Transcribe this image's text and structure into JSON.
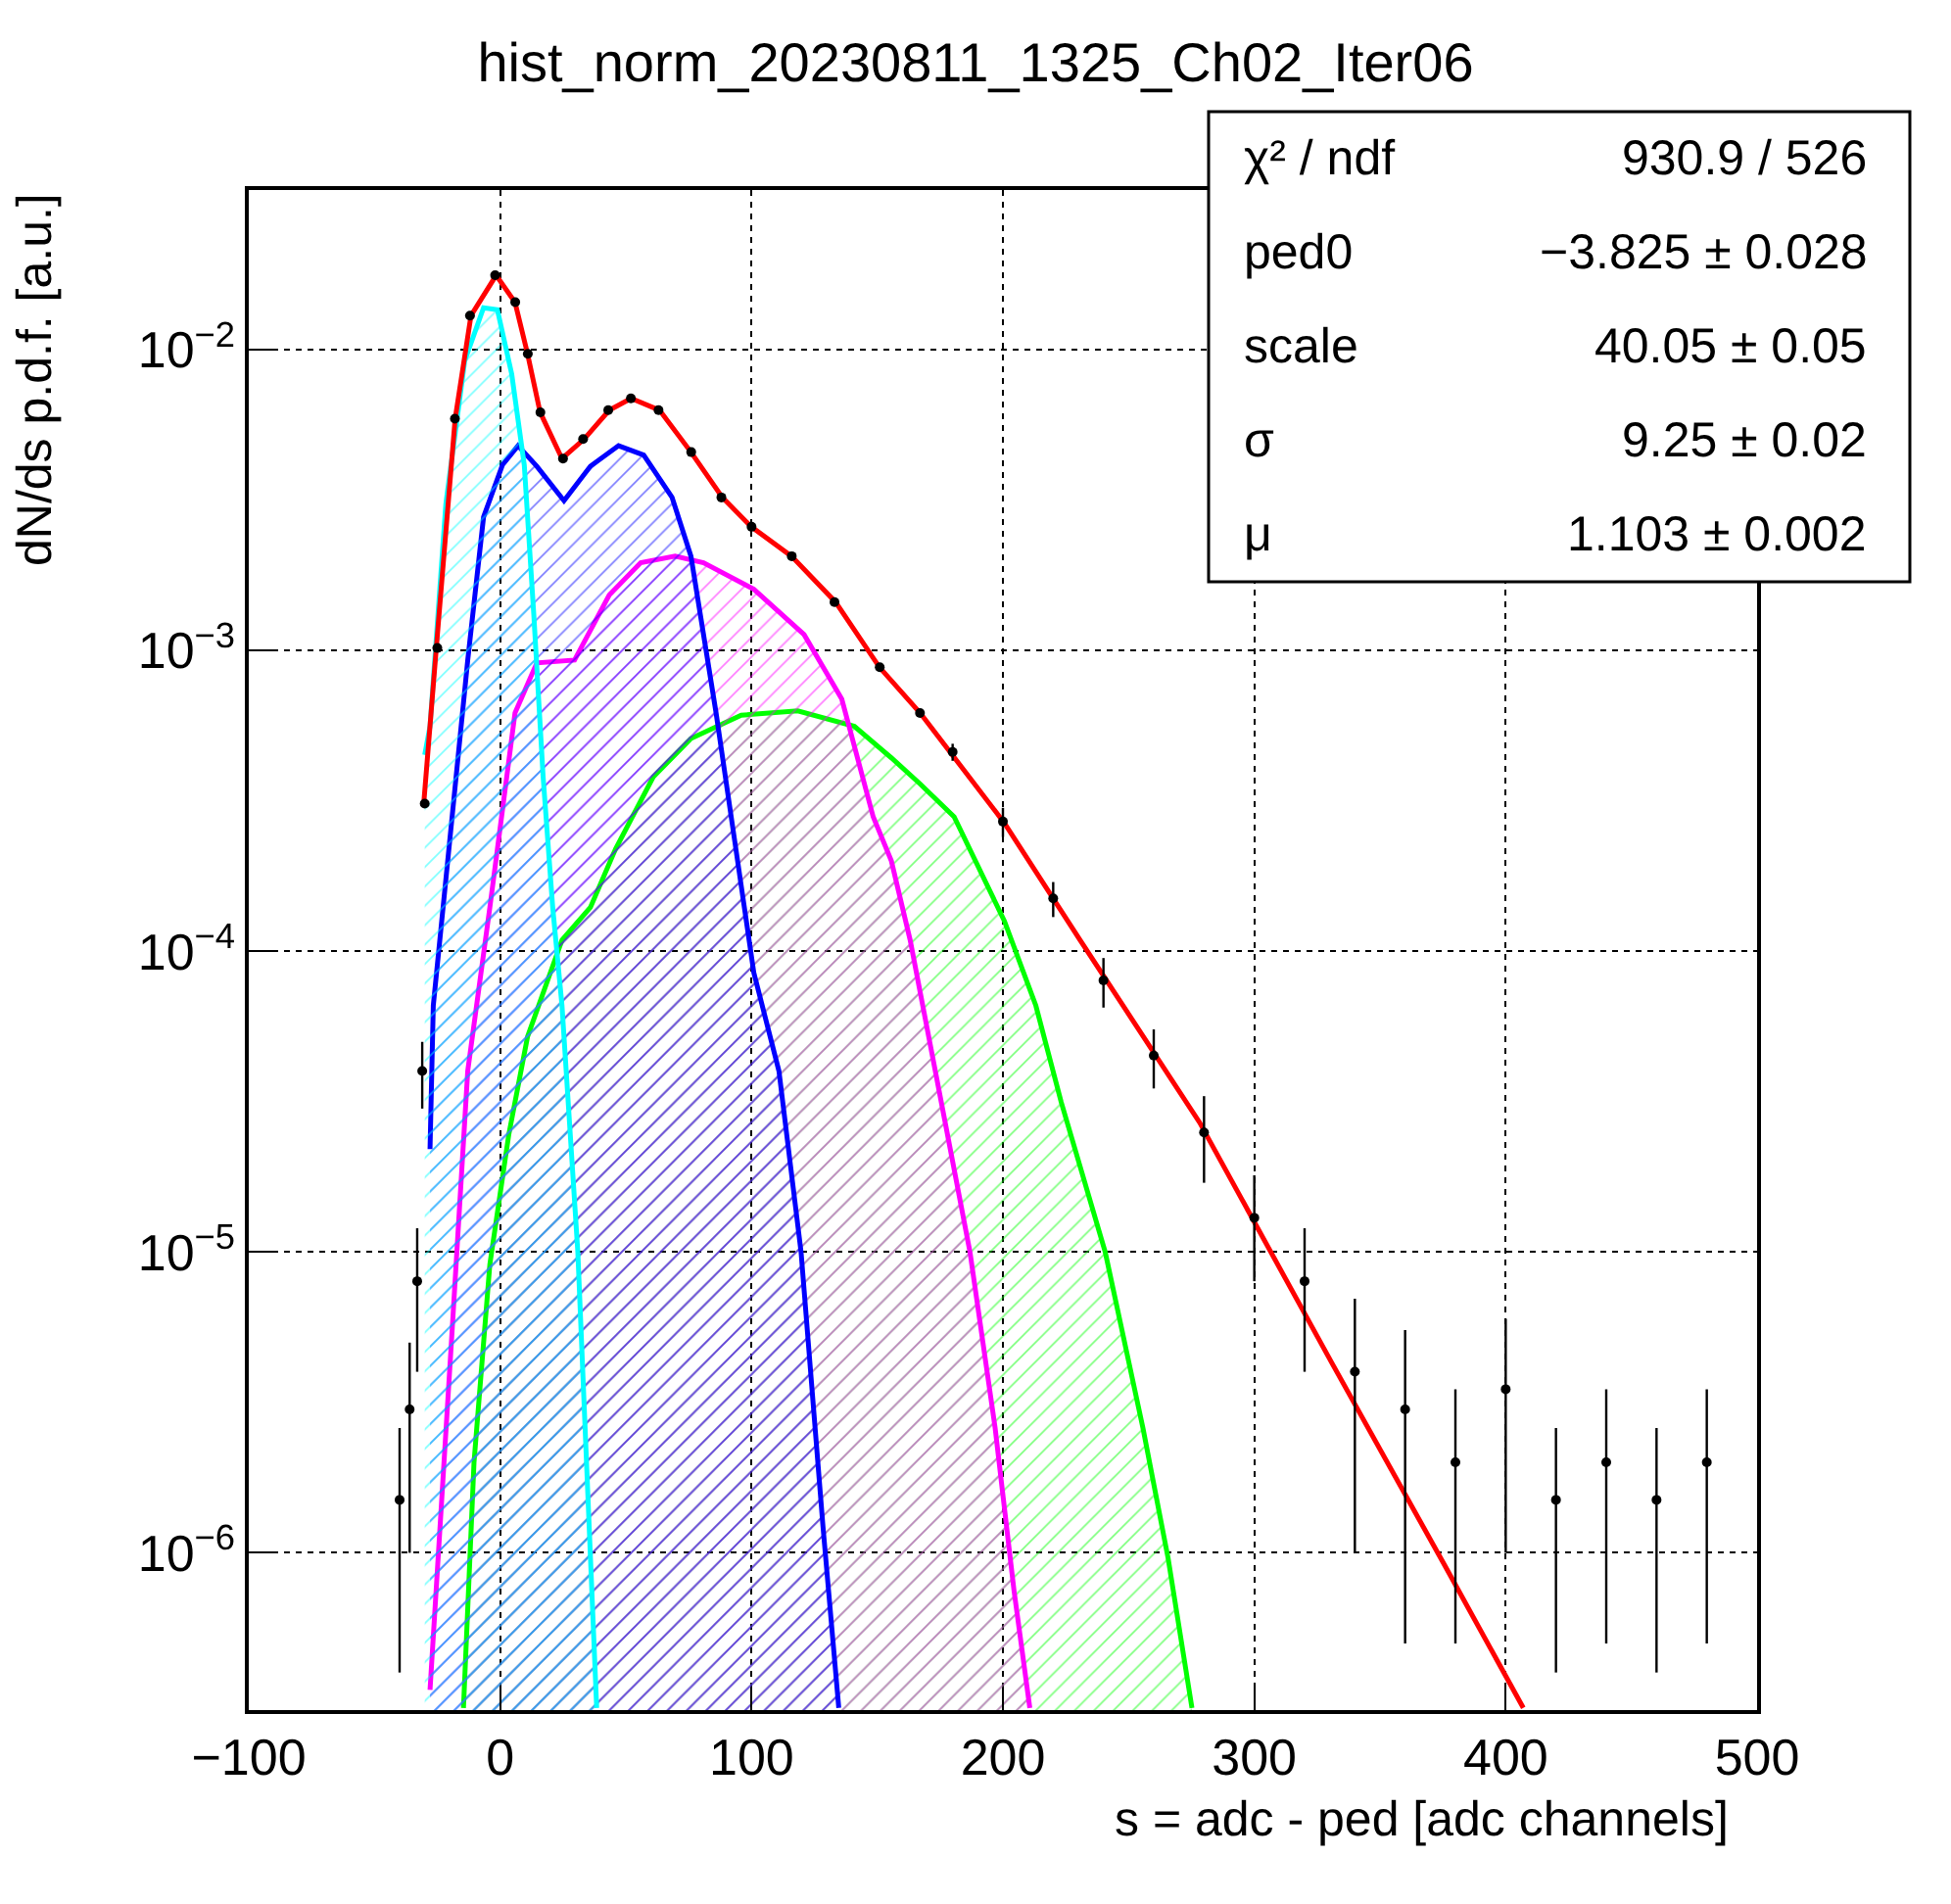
{
  "chart_data": {
    "type": "line",
    "title": "hist_norm_20230811_1325_Ch02_Iter06",
    "xlabel": "s = adc - ped [adc channels]",
    "ylabel": "dN/ds p.d.f. [a.u.]",
    "xlim": [
      -100,
      500
    ],
    "xticks": [
      -100,
      0,
      100,
      200,
      300,
      400,
      500
    ],
    "ylim": [
      3e-07,
      0.034
    ],
    "yticks": [
      {
        "value": 1e-06,
        "label": "10$^{−6}$"
      },
      {
        "value": 1e-05,
        "label": "10$^{−5}$"
      },
      {
        "value": 0.0001,
        "label": "10$^{−4}$"
      },
      {
        "value": 0.001,
        "label": "10$^{−3}$"
      },
      {
        "value": 0.01,
        "label": "10$^{−2}$"
      }
    ],
    "log": "y",
    "grid": true,
    "series": [
      {
        "type": "area",
        "color": "#00ff00",
        "x": [
          -14.6,
          -10.4,
          -4.1,
          3.4,
          10.9,
          24.6,
          35.9,
          45.9,
          60.9,
          75.9,
          95.9,
          118.4,
          140.9,
          155.6,
          167.1,
          180.6,
          200.6,
          213.1,
          223.2,
          240.7,
          255.7,
          265.7,
          275.2
        ],
        "values": [
          3.05e-07,
          2e-06,
          9.1e-06,
          2.45e-05,
          5.2e-05,
          0.000109,
          0.00014,
          0.000219,
          0.00038,
          0.00051,
          0.00061,
          0.00063,
          0.00056,
          0.00044,
          0.00036,
          0.00028,
          0.000126,
          6.6e-05,
          3.15e-05,
          1e-05,
          2.6e-06,
          9.6e-07,
          3.05e-07
        ]
      },
      {
        "type": "area",
        "color": "#ff00ff",
        "x": [
          -27.9,
          -19.1,
          -12.9,
          -4.1,
          5.9,
          14.6,
          29.6,
          43.4,
          55.9,
          69.6,
          80.9,
          100.9,
          120.9,
          135.9,
          148.4,
          155.6,
          163.1,
          173.1,
          186.9,
          196.9,
          204.4,
          210.7
        ],
        "values": [
          3.5e-07,
          5.5e-06,
          4e-05,
          0.00014,
          0.00062,
          0.00091,
          0.00093,
          0.00153,
          0.00196,
          0.00206,
          0.00196,
          0.0016,
          0.00113,
          0.00069,
          0.00028,
          0.0002,
          0.000109,
          4e-05,
          1e-05,
          2.6e-06,
          7.5e-07,
          3.05e-07
        ]
      },
      {
        "type": "area",
        "color": "#0000ff",
        "x": [
          -27.9,
          -26.6,
          -12.9,
          -6.6,
          0.9,
          7.1,
          14.6,
          25.4,
          35.9,
          47.1,
          57.1,
          68.4,
          75.9,
          85.9,
          93.4,
          100.9,
          110.9,
          119.7,
          128.4,
          134.7
        ],
        "values": [
          2.2e-05,
          6.6e-05,
          0.00093,
          0.00278,
          0.00414,
          0.0048,
          0.0041,
          0.00315,
          0.0041,
          0.0048,
          0.00447,
          0.00323,
          0.00206,
          0.00062,
          0.00023,
          8.5e-05,
          4e-05,
          1e-05,
          1.23e-06,
          3.05e-07
        ]
      },
      {
        "type": "area",
        "color": "#00ffff",
        "x": [
          -30,
          -27.9,
          -21.6,
          -14.1,
          -6.6,
          -1.1,
          4.6,
          9.6,
          13.4,
          17.1,
          20.9,
          24.6,
          30.9,
          38.4
        ],
        "values": [
          0.00045,
          0.00056,
          0.00307,
          0.0092,
          0.0138,
          0.0136,
          0.0083,
          0.00414,
          0.00131,
          0.00038,
          0.00014,
          6.6e-05,
          1e-05,
          3.05e-07
        ]
      },
      {
        "type": "scatter",
        "color": "#000000",
        "marker": "circle",
        "x": [
          -40,
          -36,
          -33,
          -31,
          -30,
          -25,
          -18,
          -12,
          -2,
          6,
          11,
          16,
          25,
          33,
          43,
          52,
          63,
          76,
          88,
          100,
          116,
          133,
          151,
          167,
          180,
          200,
          220,
          240,
          260,
          280,
          300,
          320,
          340,
          360,
          380,
          400,
          420,
          440,
          460,
          480
        ],
        "values": [
          1.5e-06,
          3e-06,
          8e-06,
          4e-05,
          0.00031,
          0.00102,
          0.0059,
          0.013,
          0.0177,
          0.0144,
          0.0097,
          0.0062,
          0.00435,
          0.00505,
          0.0063,
          0.0069,
          0.0063,
          0.00457,
          0.00323,
          0.00258,
          0.00206,
          0.00145,
          0.00088,
          0.00062,
          0.00046,
          0.00027,
          0.00015,
          8e-05,
          4.5e-05,
          2.5e-05,
          1.3e-05,
          8e-06,
          4e-06,
          3e-06,
          2e-06,
          3.5e-06,
          1.5e-06,
          2e-06,
          1.5e-06,
          2e-06
        ],
        "errors": [
          1.1e-06,
          2e-06,
          4e-06,
          1e-05,
          null,
          null,
          null,
          null,
          null,
          null,
          null,
          null,
          null,
          null,
          null,
          null,
          null,
          null,
          null,
          null,
          null,
          null,
          null,
          null,
          3e-05,
          3e-05,
          2e-05,
          1.5e-05,
          1e-05,
          8e-06,
          5e-06,
          4e-06,
          3e-06,
          2.5e-06,
          1.5e-06,
          2.5e-06,
          1.1e-06,
          1.5e-06,
          1.1e-06,
          1.5e-06
        ]
      },
      {
        "color": "#ff0000",
        "x": [
          -30.4,
          -25.4,
          -17.9,
          -11.6,
          -1.6,
          5.9,
          10.9,
          15.9,
          24.6,
          33.4,
          43.4,
          52.1,
          63.4,
          75.9,
          88.4,
          99.9,
          115.9,
          133.4,
          150.9,
          167.1,
          200.6,
          230.7,
          278.2,
          330.7,
          375.7,
          407
        ],
        "values": [
          0.00031,
          0.00102,
          0.0059,
          0.013,
          0.0177,
          0.0144,
          0.0097,
          0.0062,
          0.00435,
          0.00505,
          0.0063,
          0.0069,
          0.0063,
          0.00457,
          0.00323,
          0.00258,
          0.00206,
          0.00145,
          0.00088,
          0.00062,
          0.000267,
          0.000109,
          2.7e-05,
          4.3e-06,
          9.1e-07,
          3.05e-07
        ]
      }
    ],
    "annotations": [
      "χ² / ndf",
      "930.9 / 526",
      "ped0",
      "−3.825 ± 0.028",
      "scale",
      "40.05 ± 0.05",
      "σ",
      "9.25 ± 0.02",
      "μ",
      "1.103 ± 0.002"
    ]
  }
}
